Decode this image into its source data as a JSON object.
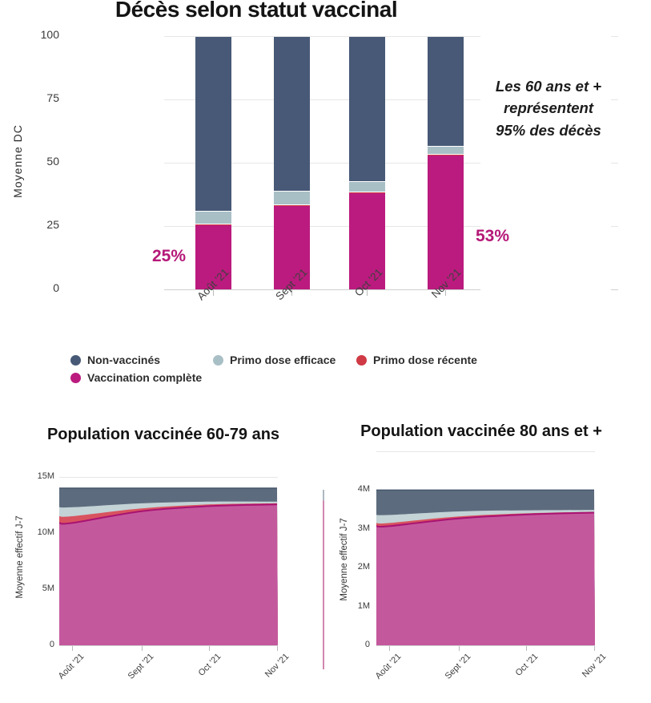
{
  "colors": {
    "bar_non_vaccines": "#475976",
    "bar_primo_efficace": "#a9bfc6",
    "bar_primo_recente": "#cf3a45",
    "bar_vaccination_complete": "#bb1b7e",
    "area_non_vaccines": "#5d6b7e",
    "area_primo_efficace": "#c3d3d6",
    "area_primo_recente": "#d8535f",
    "area_vaccination_complete": "#c4589d",
    "area_complete_edge": "#a81373",
    "area_dark_edge": "#46566b",
    "grid": "#e6e6e6",
    "baseline": "#cfcfcf",
    "pct_label": "#b51878"
  },
  "legend": {
    "position": "bottom",
    "items": [
      {
        "label": "Non-vaccinés",
        "color": "#475976"
      },
      {
        "label": "Primo dose efficace",
        "color": "#a9bfc6"
      },
      {
        "label": "Primo dose récente",
        "color": "#cf3a45"
      },
      {
        "label": "Vaccination complète",
        "color": "#bb1b7e"
      }
    ]
  },
  "chart_data": [
    {
      "type": "bar",
      "stacked": true,
      "title": "Décès selon statut vaccinal",
      "xlabel": "",
      "ylabel": "Moyenne DC",
      "categories": [
        "Août '21",
        "Sept '21",
        "Oct '21",
        "Nov '21"
      ],
      "series": [
        {
          "name": "Vaccination complète",
          "color": "#bb1b7e",
          "values": [
            25.3,
            33,
            38,
            53
          ]
        },
        {
          "name": "Primo dose récente",
          "color": "#cf3a45",
          "values": [
            0.5,
            0.6,
            0.6,
            0.6
          ]
        },
        {
          "name": "Primo dose efficace",
          "color": "#a9bfc6",
          "values": [
            5.2,
            5.4,
            4,
            3
          ]
        },
        {
          "name": "Non-vaccinés",
          "color": "#475976",
          "values": [
            69,
            61,
            57.4,
            43.4
          ]
        }
      ],
      "ylim": [
        0,
        100
      ],
      "y_ticks": [
        {
          "label": "0",
          "value": 0
        },
        {
          "label": "25",
          "value": 25
        },
        {
          "label": "50",
          "value": 50
        },
        {
          "label": "75",
          "value": 75
        },
        {
          "label": "100",
          "value": 100
        }
      ],
      "grid": true,
      "annotations": {
        "pct_aout": {
          "text": "25%",
          "x": "Août '21",
          "series": "Vaccination complète"
        },
        "pct_nov": {
          "text": "53%",
          "x": "Nov '21",
          "series": "Vaccination complète"
        },
        "note_lines": [
          "Les 60 ans et +",
          "représentent",
          "95% des décès"
        ]
      }
    },
    {
      "type": "area",
      "stacked": true,
      "title": "Population vaccinée 60-79 ans",
      "ylabel": "Moyenne effectif J-7",
      "x": [
        "Août '21",
        "Sept '21",
        "Oct '21",
        "Nov '21"
      ],
      "ylim": [
        0,
        15000000
      ],
      "y_ticks": [
        {
          "label": "0",
          "value": 0
        },
        {
          "label": "5M",
          "value": 5000000
        },
        {
          "label": "10M",
          "value": 10000000
        },
        {
          "label": "15M",
          "value": 15000000
        }
      ],
      "series": [
        {
          "name": "Vaccination complète",
          "color": "#c4589d",
          "values": [
            10900000,
            11950000,
            12400000,
            12550000
          ]
        },
        {
          "name": "Primo dose récente",
          "color": "#d8535f",
          "values": [
            600000,
            250000,
            150000,
            100000
          ]
        },
        {
          "name": "Primo dose efficace",
          "color": "#c3d3d6",
          "values": [
            800000,
            450000,
            250000,
            150000
          ]
        },
        {
          "name": "Non-vaccinés",
          "color": "#5d6b7e",
          "values": [
            1700000,
            1350000,
            1200000,
            1200000
          ]
        }
      ]
    },
    {
      "type": "area",
      "stacked": true,
      "title": "Population vaccinée 80 ans et +",
      "ylabel": "Moyenne effectif J-7",
      "x": [
        "Août '21",
        "Sept '21",
        "Oct '21",
        "Nov '21"
      ],
      "ylim": [
        0,
        4000000
      ],
      "y_ticks": [
        {
          "label": "0",
          "value": 0
        },
        {
          "label": "1M",
          "value": 1000000
        },
        {
          "label": "2M",
          "value": 2000000
        },
        {
          "label": "3M",
          "value": 3000000
        },
        {
          "label": "4M",
          "value": 4000000
        }
      ],
      "series": [
        {
          "name": "Vaccination complète",
          "color": "#c4589d",
          "values": [
            3070000,
            3270000,
            3370000,
            3420000
          ]
        },
        {
          "name": "Primo dose récente",
          "color": "#d8535f",
          "values": [
            80000,
            50000,
            30000,
            20000
          ]
        },
        {
          "name": "Primo dose efficace",
          "color": "#c3d3d6",
          "values": [
            210000,
            130000,
            80000,
            50000
          ]
        },
        {
          "name": "Non-vaccinés",
          "color": "#5d6b7e",
          "values": [
            640000,
            550000,
            520000,
            510000
          ]
        }
      ]
    }
  ]
}
